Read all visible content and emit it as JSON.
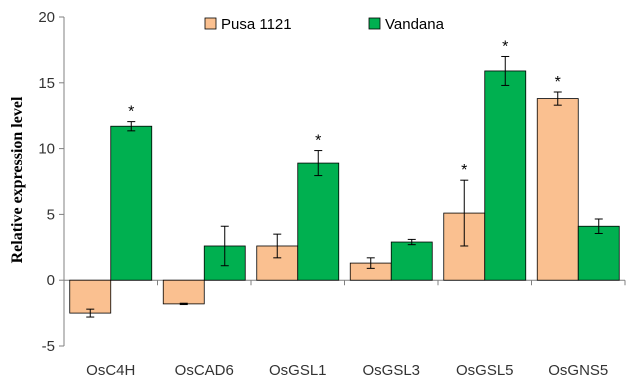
{
  "chart_data": {
    "type": "bar",
    "title": "",
    "xlabel": "",
    "ylabel": "Relative expression level",
    "ylim": [
      -5,
      20
    ],
    "yticks": [
      -5,
      0,
      5,
      10,
      15,
      20
    ],
    "categories": [
      "OsC4H",
      "OsCAD6",
      "OsGSL1",
      "OsGSL3",
      "OsGSL5",
      "OsGNS5"
    ],
    "series": [
      {
        "name": "Pusa 1121",
        "color": "#FAC090",
        "values": [
          -2.5,
          -1.8,
          2.6,
          1.3,
          5.1,
          13.8
        ],
        "errors": [
          0.3,
          0.05,
          0.9,
          0.4,
          2.5,
          0.5
        ],
        "significance": [
          "",
          "",
          "",
          "",
          "*",
          "*"
        ]
      },
      {
        "name": "Vandana",
        "color": "#00B050",
        "values": [
          11.7,
          2.6,
          8.9,
          2.9,
          15.9,
          4.1
        ],
        "errors": [
          0.35,
          1.5,
          0.95,
          0.2,
          1.1,
          0.55
        ],
        "significance": [
          "*",
          "",
          "*",
          "",
          "*",
          ""
        ]
      }
    ],
    "legend_position": "top-center",
    "grid": false
  }
}
